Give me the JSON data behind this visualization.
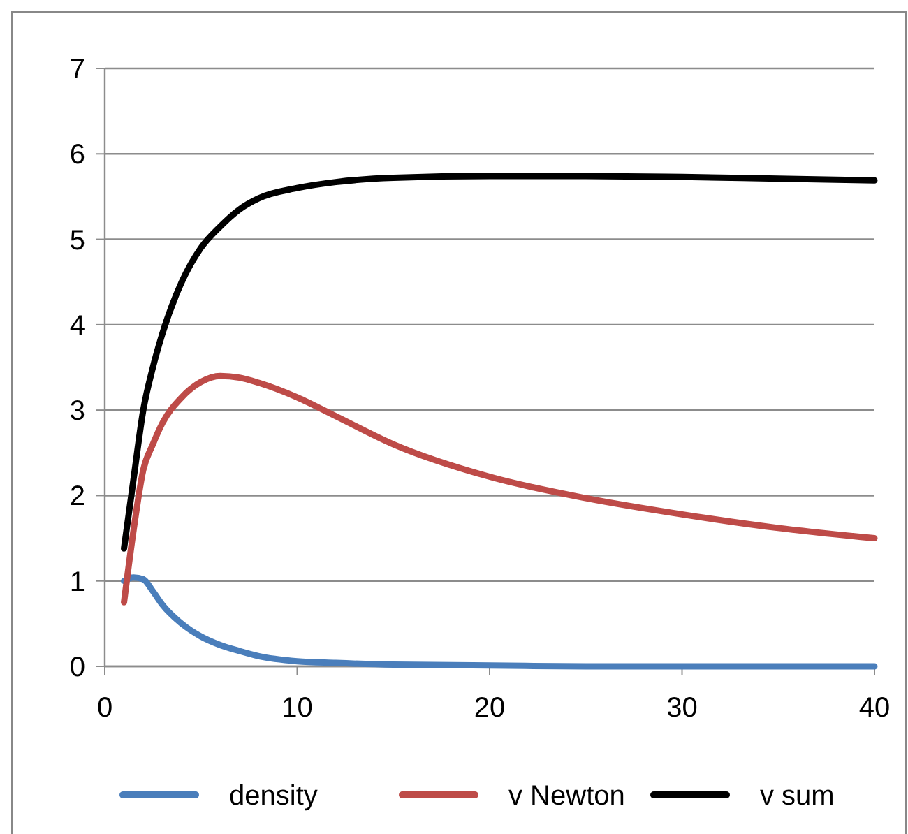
{
  "chart_data": {
    "type": "line",
    "xlim": [
      0,
      40
    ],
    "xticks": [
      0,
      10,
      20,
      30,
      40
    ],
    "ylim": [
      0,
      7
    ],
    "yticks": [
      0,
      1,
      2,
      3,
      4,
      5,
      6,
      7
    ],
    "grid": "y",
    "legend": "bottom",
    "x": [
      1,
      1.5,
      2,
      2.5,
      3,
      4,
      5,
      6,
      7,
      8,
      10,
      12,
      15,
      20,
      25,
      30,
      35,
      40
    ],
    "series": [
      {
        "name": "density",
        "color": "#4a7ebb",
        "values": [
          1.0,
          1.04,
          1.02,
          0.88,
          0.72,
          0.5,
          0.35,
          0.25,
          0.18,
          0.12,
          0.06,
          0.04,
          0.02,
          0.01,
          0.0,
          0.0,
          0.0,
          0.0
        ]
      },
      {
        "name": "v Newton",
        "color": "#be4b48",
        "values": [
          0.75,
          1.6,
          2.3,
          2.6,
          2.85,
          3.15,
          3.33,
          3.4,
          3.38,
          3.32,
          3.15,
          2.93,
          2.6,
          2.22,
          1.97,
          1.78,
          1.62,
          1.5
        ]
      },
      {
        "name": "v sum",
        "color": "#000000",
        "values": [
          1.38,
          2.2,
          3.0,
          3.5,
          3.9,
          4.5,
          4.9,
          5.15,
          5.35,
          5.48,
          5.6,
          5.67,
          5.72,
          5.74,
          5.74,
          5.73,
          5.71,
          5.69
        ]
      }
    ]
  }
}
